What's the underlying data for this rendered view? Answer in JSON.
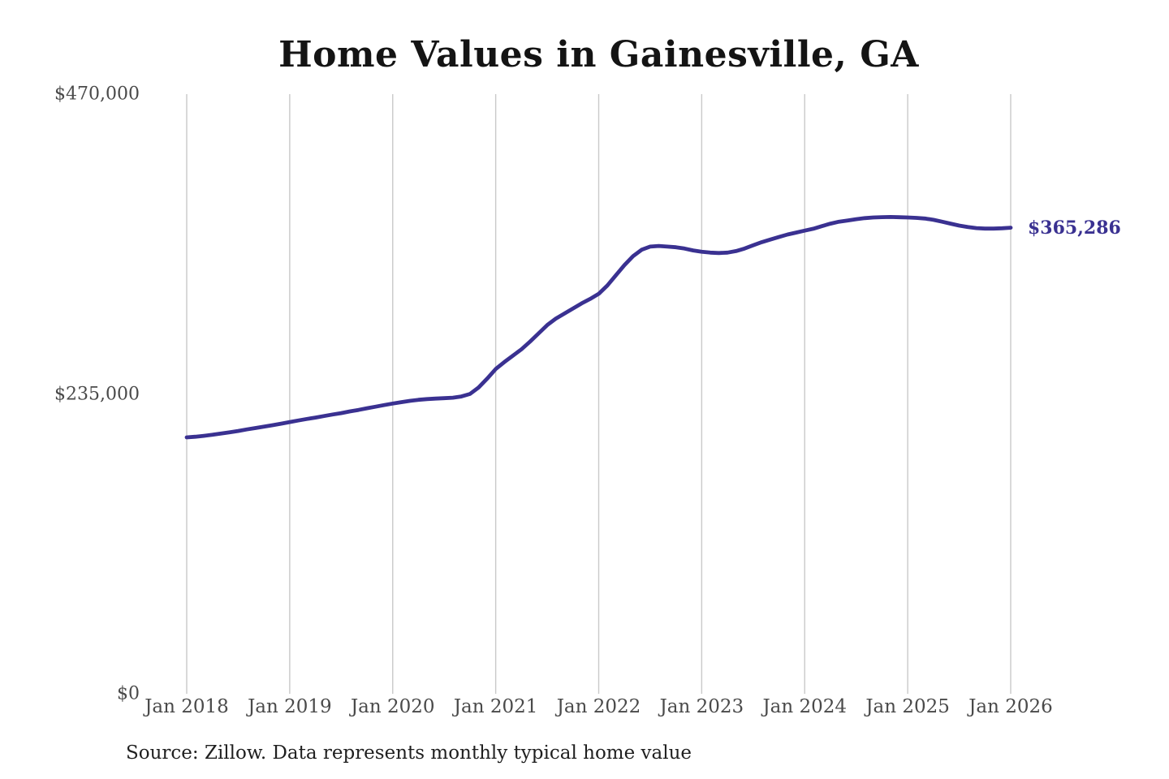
{
  "title": "Home Values in Gainesville, GA",
  "source_note": "Source: Zillow. Data represents monthly typical home value",
  "colors": {
    "line": "#3a3191",
    "end_label": "#3a3191",
    "grid": "#c9c9c9",
    "tick_text": "#4a4a4a",
    "title_text": "#141414",
    "source_text": "#1f1f1f",
    "background": "#ffffff"
  },
  "chart_data": {
    "type": "line",
    "title": "Home Values in Gainesville, GA",
    "xlabel": "",
    "ylabel": "",
    "interval": "monthly",
    "x_start": "Jan 2018",
    "x_end": "Jan 2026",
    "ylim": [
      0,
      470000
    ],
    "grid": "vertical-only",
    "legend": "none",
    "x_tick_labels": [
      "Jan 2018",
      "Jan 2019",
      "Jan 2020",
      "Jan 2021",
      "Jan 2022",
      "Jan 2023",
      "Jan 2024",
      "Jan 2025",
      "Jan 2026"
    ],
    "y_ticks": [
      {
        "label": "$0",
        "value": 0
      },
      {
        "label": "$235,000",
        "value": 235000
      },
      {
        "label": "$470,000",
        "value": 470000
      }
    ],
    "annotation": {
      "text": "$365,286",
      "value": 365286,
      "position": "end-of-line"
    },
    "series": [
      {
        "name": "Typical home value",
        "final_value": 365286,
        "values": [
          201000,
          201500,
          202200,
          203000,
          204000,
          205000,
          206000,
          207200,
          208300,
          209400,
          210500,
          211700,
          213000,
          214200,
          215400,
          216500,
          217700,
          218900,
          220000,
          221300,
          222500,
          223800,
          225000,
          226300,
          227500,
          228600,
          229600,
          230400,
          231000,
          231400,
          231700,
          232100,
          233000,
          235000,
          240000,
          247000,
          254500,
          260000,
          265000,
          270000,
          276000,
          282500,
          289000,
          294000,
          298000,
          302000,
          306000,
          309500,
          313500,
          320000,
          328000,
          336000,
          343000,
          348000,
          350500,
          351000,
          350500,
          350000,
          349000,
          347500,
          346500,
          345800,
          345500,
          345800,
          347000,
          349000,
          351500,
          354000,
          356000,
          358000,
          360000,
          361500,
          363000,
          364500,
          366500,
          368500,
          370000,
          371000,
          372000,
          372800,
          373300,
          373600,
          373700,
          373500,
          373300,
          373000,
          372500,
          371500,
          370000,
          368500,
          367000,
          365800,
          365000,
          364600,
          364600,
          364900,
          365286
        ]
      }
    ]
  }
}
